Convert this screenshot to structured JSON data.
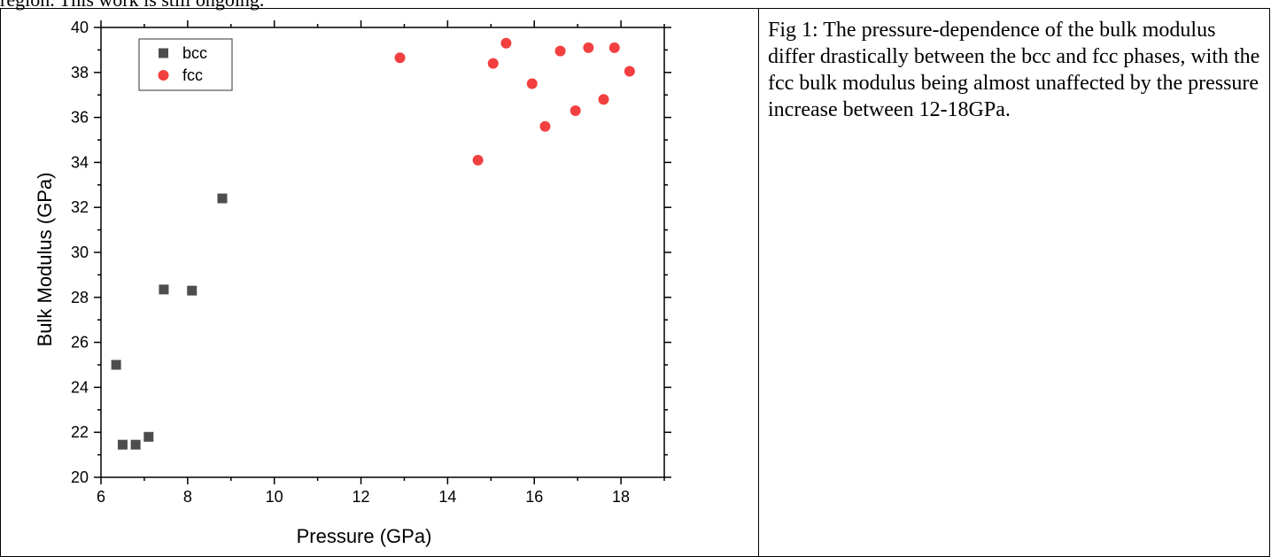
{
  "document": {
    "top_text": "region. This work is still ongoing.",
    "caption": "Fig 1: The pressure-dependence of the bulk modulus differ drastically between the bcc and fcc phases, with the fcc bulk modulus being almost unaffected by the pressure increase between 12-18GPa."
  },
  "chart_data": {
    "type": "scatter",
    "xlabel": "Pressure (GPa)",
    "ylabel": "Bulk Modulus (GPa)",
    "xlim": [
      6,
      19
    ],
    "ylim": [
      20,
      40
    ],
    "xticks": [
      6,
      8,
      10,
      12,
      14,
      16,
      18
    ],
    "yticks": [
      20,
      22,
      24,
      26,
      28,
      30,
      32,
      34,
      36,
      38,
      40
    ],
    "grid": false,
    "legend_position": "top-left",
    "series": [
      {
        "name": "bcc",
        "marker": "square",
        "color": "#4d4d4d",
        "points": [
          [
            6.35,
            25.0
          ],
          [
            6.5,
            21.45
          ],
          [
            6.8,
            21.45
          ],
          [
            7.1,
            21.8
          ],
          [
            7.45,
            28.35
          ],
          [
            8.1,
            28.3
          ],
          [
            8.8,
            32.4
          ]
        ]
      },
      {
        "name": "fcc",
        "marker": "circle",
        "color": "#f24040",
        "points": [
          [
            12.9,
            38.65
          ],
          [
            14.7,
            34.1
          ],
          [
            15.05,
            38.4
          ],
          [
            15.35,
            39.3
          ],
          [
            15.95,
            37.5
          ],
          [
            16.25,
            35.6
          ],
          [
            16.6,
            38.95
          ],
          [
            16.95,
            36.3
          ],
          [
            17.25,
            39.1
          ],
          [
            17.6,
            36.8
          ],
          [
            17.85,
            39.1
          ],
          [
            18.2,
            38.05
          ]
        ]
      }
    ]
  }
}
